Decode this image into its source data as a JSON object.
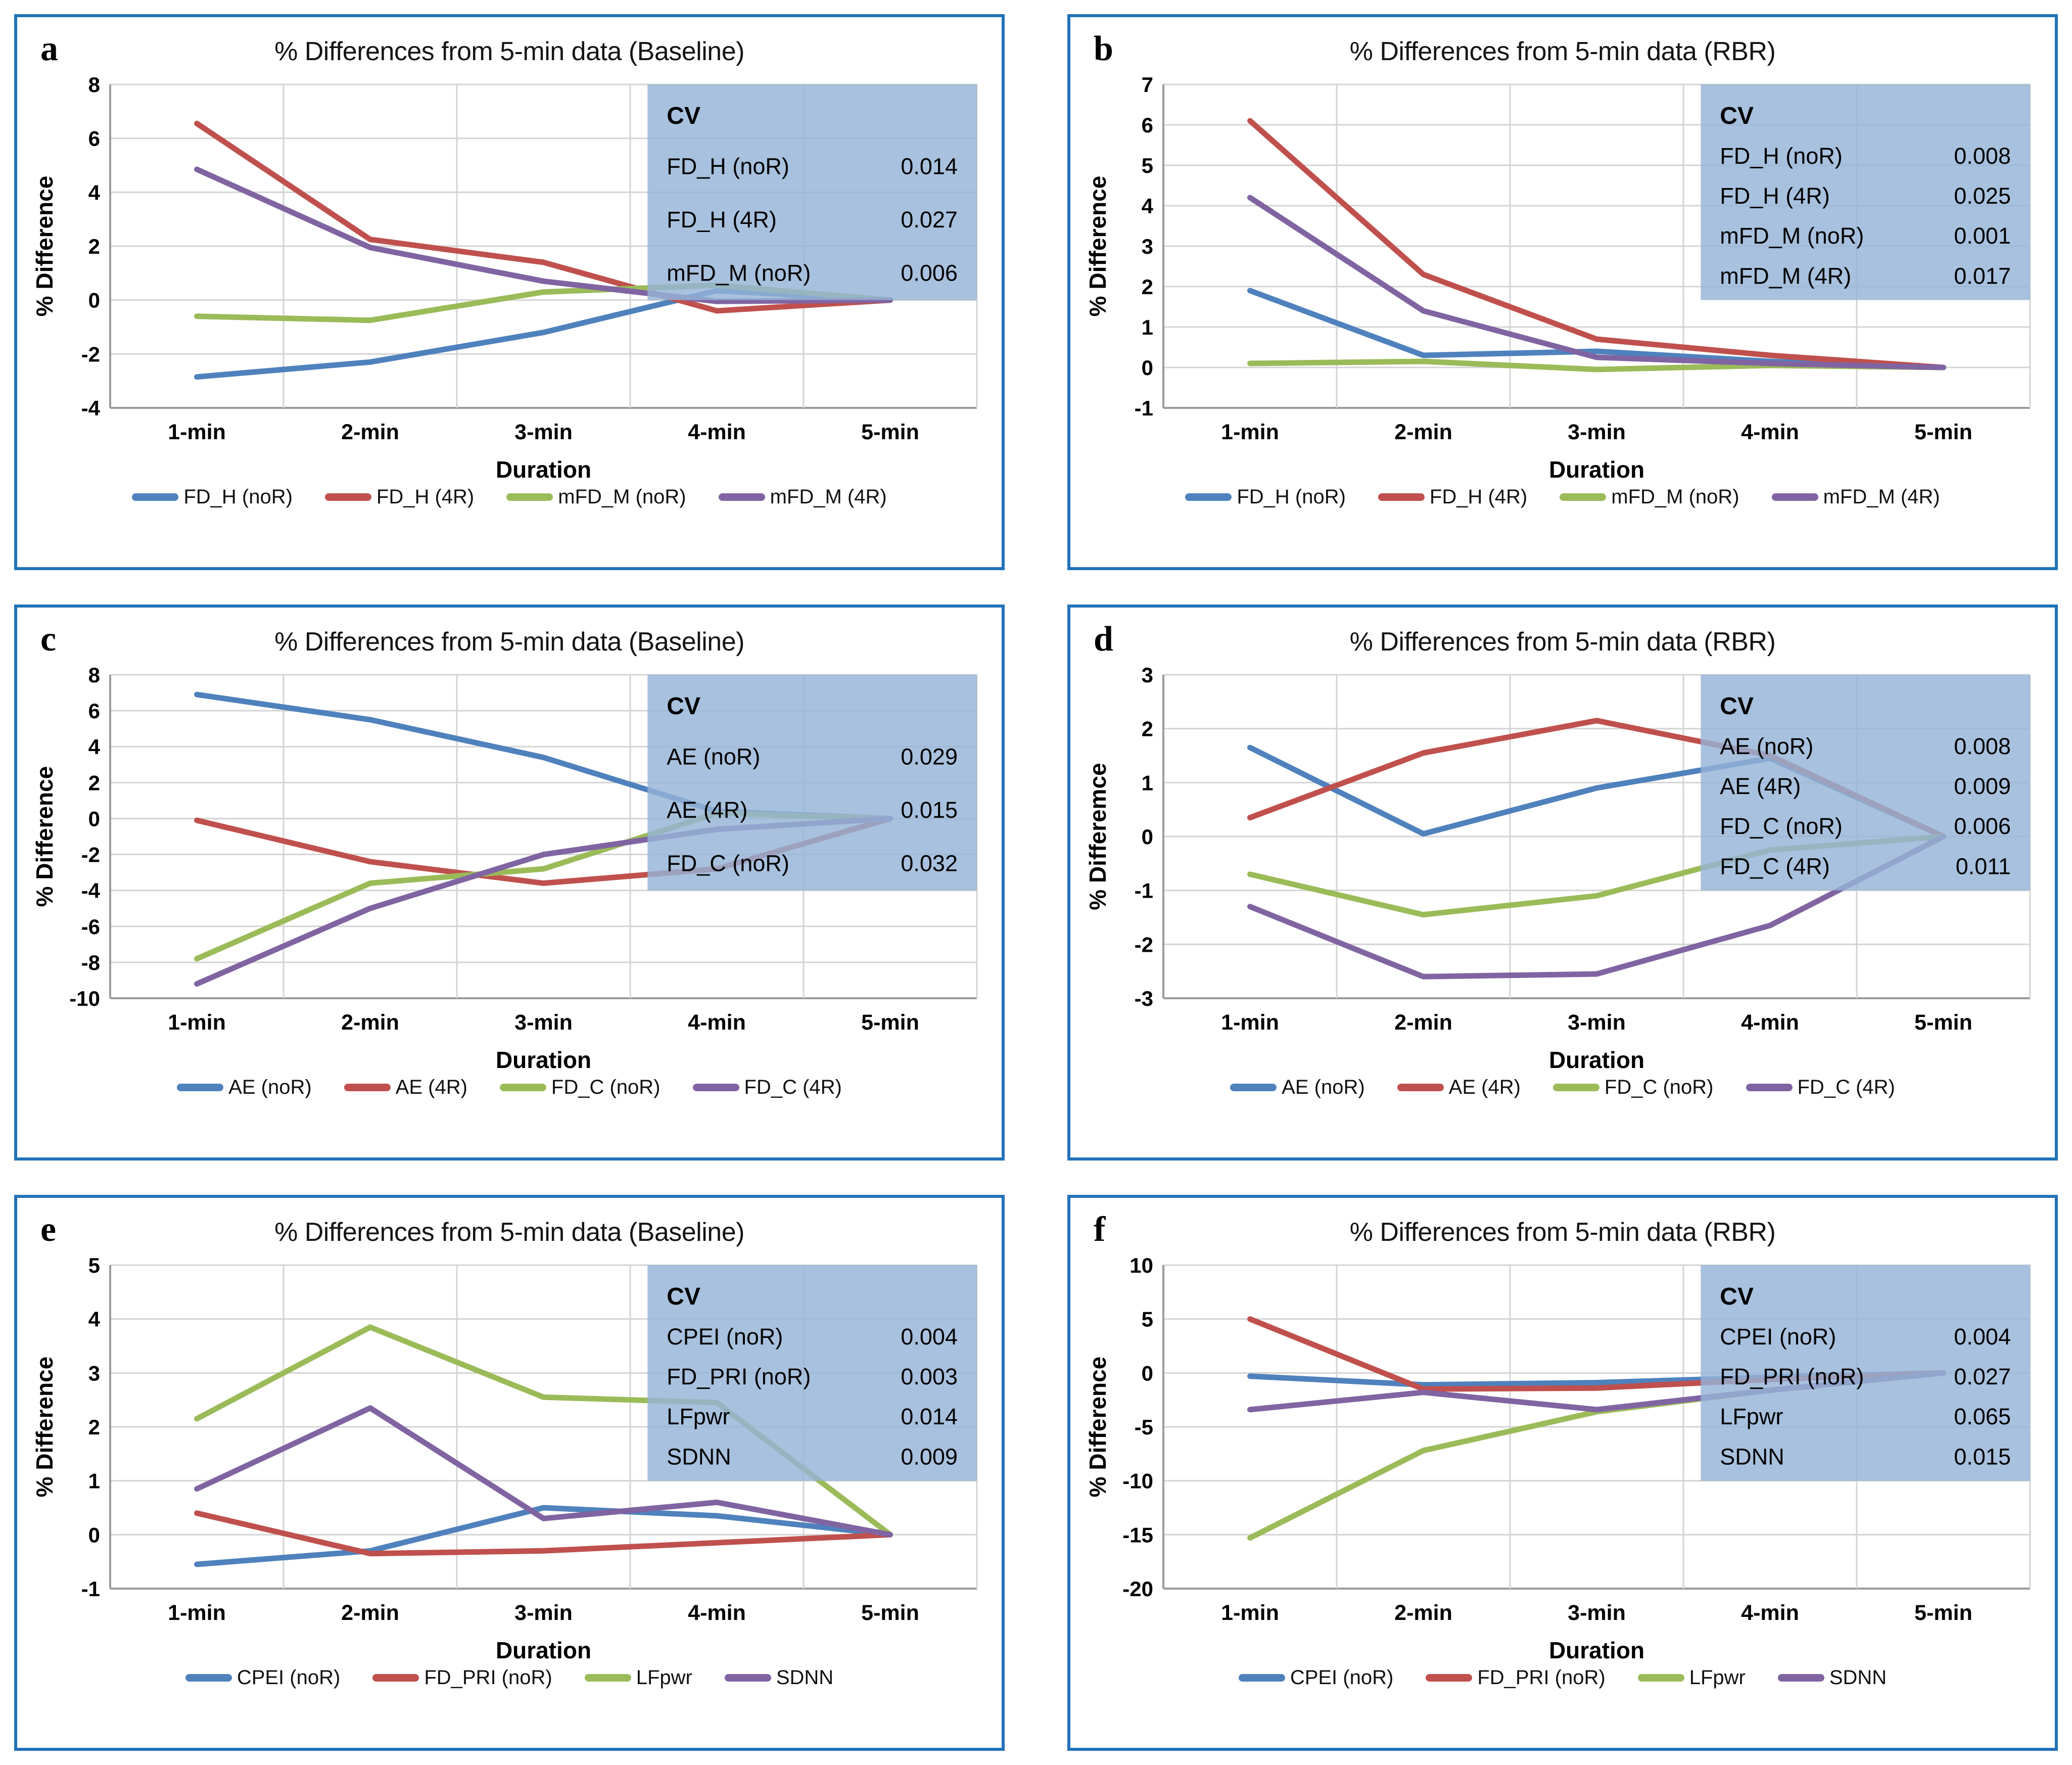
{
  "colors": {
    "blue": "#4F81BD",
    "red": "#C0504D",
    "green": "#9BBB59",
    "purple": "#8064A2",
    "cv_box_fill": "#95B3D7",
    "panel_border": "#2272B9",
    "grid": "#D4D4D4",
    "axis": "#9B9B9B",
    "text": "#000000"
  },
  "categories": [
    "1-min",
    "2-min",
    "3-min",
    "4-min",
    "5-min"
  ],
  "chart_data": [
    {
      "type": "line",
      "letter": "a",
      "title": "% Differences from 5-min data (Baseline)",
      "xlabel": "Duration",
      "ylabel": "% Difference",
      "categories": [
        "1-min",
        "2-min",
        "3-min",
        "4-min",
        "5-min"
      ],
      "ylim": [
        -4,
        8
      ],
      "y_step": 2,
      "grid": true,
      "legend_position": "bottom",
      "series": [
        {
          "name": "FD_H (noR)",
          "color": "blue",
          "values": [
            -2.85,
            -2.3,
            -1.2,
            0.35,
            0
          ]
        },
        {
          "name": "FD_H (4R)",
          "color": "red",
          "values": [
            6.55,
            2.25,
            1.4,
            -0.4,
            0
          ]
        },
        {
          "name": "mFD_M (noR)",
          "color": "green",
          "values": [
            -0.6,
            -0.75,
            0.3,
            0.55,
            0
          ]
        },
        {
          "name": "mFD_M (4R)",
          "color": "purple",
          "values": [
            4.85,
            1.95,
            0.7,
            -0.05,
            0
          ]
        }
      ],
      "cv_table": {
        "header": "CV",
        "rows": [
          {
            "label": "FD_H (noR)",
            "value": "0.014"
          },
          {
            "label": "FD_H (4R)",
            "value": "0.027"
          },
          {
            "label": "mFD_M (noR)",
            "value": "0.006"
          }
        ]
      }
    },
    {
      "type": "line",
      "letter": "b",
      "title": "% Differences from 5-min data (RBR)",
      "xlabel": "Duration",
      "ylabel": "% Difference",
      "categories": [
        "1-min",
        "2-min",
        "3-min",
        "4-min",
        "5-min"
      ],
      "ylim": [
        -1,
        7
      ],
      "y_step": 1,
      "grid": true,
      "legend_position": "bottom",
      "series": [
        {
          "name": "FD_H (noR)",
          "color": "blue",
          "values": [
            1.9,
            0.3,
            0.4,
            0.15,
            0
          ]
        },
        {
          "name": "FD_H (4R)",
          "color": "red",
          "values": [
            6.1,
            2.3,
            0.7,
            0.3,
            0
          ]
        },
        {
          "name": "mFD_M (noR)",
          "color": "green",
          "values": [
            0.1,
            0.15,
            -0.05,
            0.05,
            0
          ]
        },
        {
          "name": "mFD_M (4R)",
          "color": "purple",
          "values": [
            4.2,
            1.4,
            0.25,
            0.1,
            0
          ]
        }
      ],
      "cv_table": {
        "header": "CV",
        "rows": [
          {
            "label": "FD_H (noR)",
            "value": "0.008"
          },
          {
            "label": "FD_H (4R)",
            "value": "0.025"
          },
          {
            "label": "mFD_M (noR)",
            "value": "0.001"
          },
          {
            "label": "mFD_M (4R)",
            "value": "0.017"
          }
        ]
      }
    },
    {
      "type": "line",
      "letter": "c",
      "title": "% Differences from 5-min data (Baseline)",
      "xlabel": "Duration",
      "ylabel": "% Difference",
      "categories": [
        "1-min",
        "2-min",
        "3-min",
        "4-min",
        "5-min"
      ],
      "ylim": [
        -10,
        8
      ],
      "y_step": 2,
      "grid": true,
      "legend_position": "bottom",
      "series": [
        {
          "name": "AE (noR)",
          "color": "blue",
          "values": [
            6.9,
            5.5,
            3.4,
            0.4,
            0
          ]
        },
        {
          "name": "AE (4R)",
          "color": "red",
          "values": [
            -0.1,
            -2.4,
            -3.6,
            -2.8,
            0
          ]
        },
        {
          "name": "FD_C (noR)",
          "color": "green",
          "values": [
            -7.8,
            -3.6,
            -2.8,
            0.3,
            0
          ]
        },
        {
          "name": "FD_C (4R)",
          "color": "purple",
          "values": [
            -9.2,
            -5.0,
            -2.0,
            -0.6,
            0
          ]
        }
      ],
      "cv_table": {
        "header": "CV",
        "rows": [
          {
            "label": "AE (noR)",
            "value": "0.029"
          },
          {
            "label": "AE (4R)",
            "value": "0.015"
          },
          {
            "label": "FD_C (noR)",
            "value": "0.032"
          }
        ]
      }
    },
    {
      "type": "line",
      "letter": "d",
      "title": "% Differences from 5-min data (RBR)",
      "xlabel": "Duration",
      "ylabel": "% Differemce",
      "categories": [
        "1-min",
        "2-min",
        "3-min",
        "4-min",
        "5-min"
      ],
      "ylim": [
        -3,
        3
      ],
      "y_step": 1,
      "grid": true,
      "legend_position": "bottom",
      "series": [
        {
          "name": "AE (noR)",
          "color": "blue",
          "values": [
            1.65,
            0.05,
            0.9,
            1.45,
            0
          ]
        },
        {
          "name": "AE (4R)",
          "color": "red",
          "values": [
            0.35,
            1.55,
            2.15,
            1.5,
            0
          ]
        },
        {
          "name": "FD_C (noR)",
          "color": "green",
          "values": [
            -0.7,
            -1.45,
            -1.1,
            -0.25,
            0
          ]
        },
        {
          "name": "FD_C (4R)",
          "color": "purple",
          "values": [
            -1.3,
            -2.6,
            -2.55,
            -1.65,
            0
          ]
        }
      ],
      "cv_table": {
        "header": "CV",
        "rows": [
          {
            "label": "AE (noR)",
            "value": "0.008"
          },
          {
            "label": "AE (4R)",
            "value": "0.009"
          },
          {
            "label": "FD_C (noR)",
            "value": "0.006"
          },
          {
            "label": "FD_C (4R)",
            "value": "0.011"
          }
        ]
      }
    },
    {
      "type": "line",
      "letter": "e",
      "title": "% Differences from 5-min data (Baseline)",
      "xlabel": "Duration",
      "ylabel": "% Difference",
      "categories": [
        "1-min",
        "2-min",
        "3-min",
        "4-min",
        "5-min"
      ],
      "ylim": [
        -1,
        5
      ],
      "y_step": 1,
      "grid": true,
      "legend_position": "bottom",
      "series": [
        {
          "name": "CPEI (noR)",
          "color": "blue",
          "values": [
            -0.55,
            -0.3,
            0.5,
            0.35,
            0
          ]
        },
        {
          "name": "FD_PRI (noR)",
          "color": "red",
          "values": [
            0.4,
            -0.35,
            -0.3,
            -0.15,
            0
          ]
        },
        {
          "name": "LFpwr",
          "color": "green",
          "values": [
            2.15,
            3.85,
            2.55,
            2.45,
            0
          ]
        },
        {
          "name": "SDNN",
          "color": "purple",
          "values": [
            0.85,
            2.35,
            0.3,
            0.6,
            0
          ]
        }
      ],
      "cv_table": {
        "header": "CV",
        "rows": [
          {
            "label": "CPEI (noR)",
            "value": "0.004"
          },
          {
            "label": "FD_PRI (noR)",
            "value": "0.003"
          },
          {
            "label": "LFpwr",
            "value": "0.014"
          },
          {
            "label": "SDNN",
            "value": "0.009"
          }
        ]
      }
    },
    {
      "type": "line",
      "letter": "f",
      "title": "% Differences from 5-min data (RBR)",
      "xlabel": "Duration",
      "ylabel": "% Difference",
      "categories": [
        "1-min",
        "2-min",
        "3-min",
        "4-min",
        "5-min"
      ],
      "ylim": [
        -20,
        10
      ],
      "y_step": 5,
      "grid": true,
      "legend_position": "bottom",
      "series": [
        {
          "name": "CPEI (noR)",
          "color": "blue",
          "values": [
            -0.3,
            -1.1,
            -0.9,
            -0.4,
            0
          ]
        },
        {
          "name": "FD_PRI (noR)",
          "color": "red",
          "values": [
            5.0,
            -1.5,
            -1.4,
            -0.6,
            0
          ]
        },
        {
          "name": "LFpwr",
          "color": "green",
          "values": [
            -15.3,
            -7.2,
            -3.6,
            -1.6,
            0
          ]
        },
        {
          "name": "SDNN",
          "color": "purple",
          "values": [
            -3.4,
            -1.8,
            -3.4,
            -1.6,
            0
          ]
        }
      ],
      "cv_table": {
        "header": "CV",
        "rows": [
          {
            "label": "CPEI (noR)",
            "value": "0.004"
          },
          {
            "label": "FD_PRI (noR)",
            "value": "0.027"
          },
          {
            "label": "LFpwr",
            "value": "0.065"
          },
          {
            "label": "SDNN",
            "value": "0.015"
          }
        ]
      }
    }
  ]
}
